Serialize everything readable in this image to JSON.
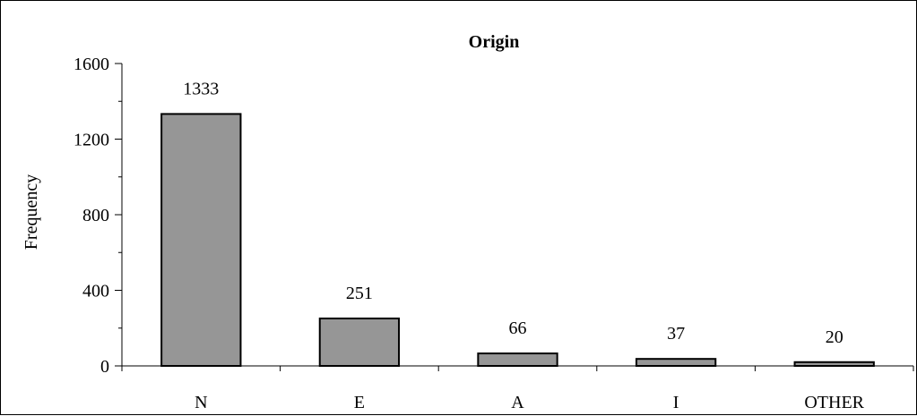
{
  "chart_data": {
    "type": "bar",
    "title": "Origin",
    "xlabel": "",
    "ylabel": "Frequency",
    "categories": [
      "N",
      "E",
      "A",
      "I",
      "OTHER"
    ],
    "values": [
      1333,
      251,
      66,
      37,
      20
    ],
    "value_labels": [
      "1333",
      "251",
      "66",
      "37",
      "20"
    ],
    "ylim": [
      0,
      1600
    ],
    "yticks": [
      0,
      400,
      800,
      1200,
      1600
    ],
    "ytick_labels": [
      "0",
      "400",
      "800",
      "1200",
      "1600"
    ],
    "grid": false,
    "legend": "none",
    "colors": {
      "bar_fill": "#969696",
      "bar_stroke": "#000000",
      "axis": "#000000",
      "background": "#ffffff"
    }
  }
}
